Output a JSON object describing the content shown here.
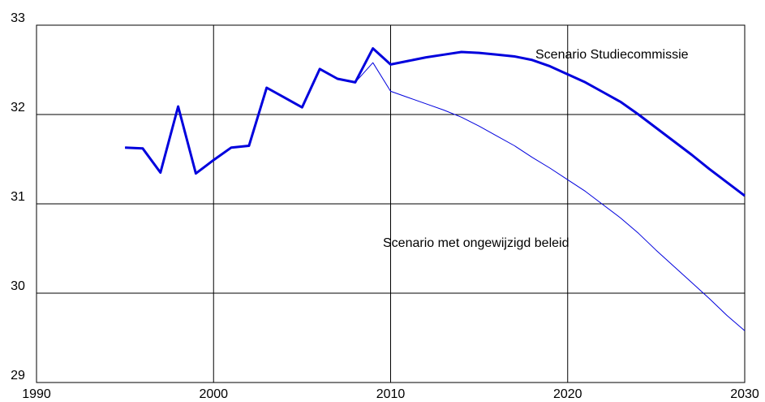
{
  "chart_data": {
    "type": "line",
    "x": [
      1995,
      1996,
      1997,
      1998,
      1999,
      2000,
      2001,
      2002,
      2003,
      2004,
      2005,
      2006,
      2007,
      2008,
      2009,
      2010,
      2011,
      2012,
      2013,
      2014,
      2015,
      2016,
      2017,
      2018,
      2019,
      2020,
      2021,
      2022,
      2023,
      2024,
      2025,
      2026,
      2027,
      2028,
      2029,
      2030
    ],
    "series": [
      {
        "name": "Scenario Studiecommissie",
        "color": "#0000dd",
        "values": [
          31.63,
          31.62,
          31.35,
          32.09,
          31.34,
          31.49,
          31.63,
          31.65,
          32.3,
          32.19,
          32.08,
          32.51,
          32.4,
          32.36,
          32.74,
          32.56,
          32.6,
          32.64,
          32.67,
          32.7,
          32.69,
          32.67,
          32.65,
          32.61,
          32.54,
          32.45,
          32.36,
          32.25,
          32.14,
          32.0,
          31.85,
          31.7,
          31.55,
          31.39,
          31.24,
          31.09
        ]
      },
      {
        "name": "Scenario met ongewijzigd beleid",
        "color": "#0000dd",
        "values": [
          31.63,
          31.62,
          31.35,
          32.09,
          31.34,
          31.49,
          31.63,
          31.65,
          32.3,
          32.19,
          32.08,
          32.51,
          32.4,
          32.36,
          32.58,
          32.26,
          32.19,
          32.12,
          32.05,
          31.97,
          31.87,
          31.76,
          31.65,
          31.52,
          31.4,
          31.27,
          31.14,
          30.99,
          30.84,
          30.67,
          30.48,
          30.3,
          30.12,
          29.94,
          29.75,
          29.58
        ]
      }
    ],
    "xlim": [
      1990,
      2030
    ],
    "xticks": [
      1990,
      2000,
      2010,
      2020,
      2030
    ],
    "ylim": [
      29,
      33
    ],
    "yticks": [
      29,
      30,
      31,
      32,
      33
    ],
    "grid": true
  }
}
